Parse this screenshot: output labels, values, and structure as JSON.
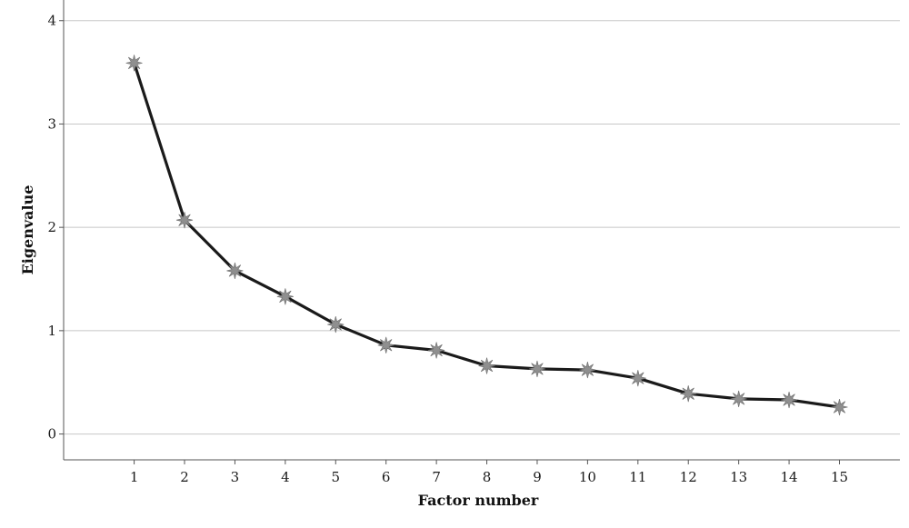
{
  "chart_data": {
    "type": "line",
    "title": "",
    "xlabel": "Factor number",
    "ylabel": "Eigenvalue",
    "x": [
      1,
      2,
      3,
      4,
      5,
      6,
      7,
      8,
      9,
      10,
      11,
      12,
      13,
      14,
      15
    ],
    "series": [
      {
        "values": [
          3.59,
          2.07,
          1.58,
          1.33,
          1.06,
          0.86,
          0.81,
          0.66,
          0.63,
          0.62,
          0.54,
          0.39,
          0.34,
          0.33,
          0.26
        ]
      }
    ],
    "xlim": [
      -0.4,
      16.2
    ],
    "ylim": [
      -0.25,
      4.2
    ],
    "yticks": [
      0,
      1,
      2,
      3,
      4
    ],
    "xticks": [
      1,
      2,
      3,
      4,
      5,
      6,
      7,
      8,
      9,
      10,
      11,
      12,
      13,
      14,
      15
    ],
    "grid": "horizontal",
    "legend": "none",
    "colors": {
      "line": "#1a1a1a",
      "marker": "#8f8f8f",
      "grid": "#c8c8c8",
      "axis": "#555555"
    }
  }
}
